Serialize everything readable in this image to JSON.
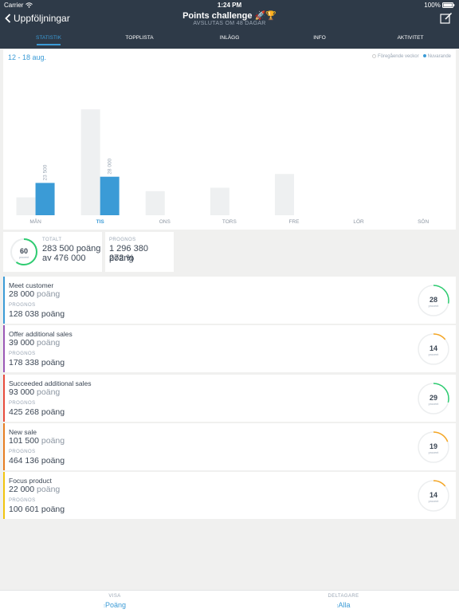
{
  "status_bar": {
    "carrier": "Carrier",
    "time": "1:24 PM",
    "battery": "100%"
  },
  "header": {
    "back_label": "Uppföljningar",
    "title": "Points challenge 🚀🏆",
    "subtitle": "AVSLUTAS OM 48 DAGAR",
    "edit_icon": "edit-icon"
  },
  "tabs": [
    "STATISTIK",
    "TOPPLISTA",
    "INLÄGG",
    "INFO",
    "AKTIVITET"
  ],
  "chart": {
    "date_range": "12 - 18 aug.",
    "legend_previous": "Föregående veckor",
    "legend_current": "Nuvarande"
  },
  "chart_data": {
    "type": "bar",
    "categories": [
      "MÅN",
      "TIS",
      "ONS",
      "TORS",
      "FRE",
      "LÖR",
      "SÖN"
    ],
    "highlight_category": "TIS",
    "series": [
      {
        "name": "Föregående veckor",
        "values": [
          13000,
          77000,
          17500,
          20000,
          30000,
          0,
          0
        ],
        "color": "#eef0f1"
      },
      {
        "name": "Nuvarande",
        "values": [
          23500,
          28000,
          0,
          0,
          0,
          0,
          0
        ],
        "color": "#3b9bd6"
      }
    ],
    "data_labels": [
      "23 500",
      "28 000"
    ],
    "ylim": [
      0,
      80000
    ]
  },
  "summary": {
    "percent": "60",
    "percent_label": "procent",
    "percent_value": 0.6,
    "total_label": "TOTALT",
    "total_value": "283 500 poäng",
    "total_of": "av 476 000",
    "prognos_label": "PROGNOS",
    "prognos_value": "1 296 380 poäng",
    "prognos_percent": "272 %"
  },
  "metrics": [
    {
      "name": "Meet customer",
      "value": "28 000",
      "unit": "poäng",
      "prognos_label": "PROGNOS",
      "prognos": "128 038",
      "percent": "28",
      "percent_label": "procent",
      "fraction": 0.28,
      "color": "#3b9bd6",
      "ring_color": "#2ecc71"
    },
    {
      "name": "Offer additional sales",
      "value": "39 000",
      "unit": "poäng",
      "prognos_label": "PROGNOS",
      "prognos": "178 338",
      "percent": "14",
      "percent_label": "procent",
      "fraction": 0.14,
      "color": "#9b59b6",
      "ring_color": "#f5a623"
    },
    {
      "name": "Succeeded additional sales",
      "value": "93 000",
      "unit": "poäng",
      "prognos_label": "PROGNOS",
      "prognos": "425 268",
      "percent": "29",
      "percent_label": "procent",
      "fraction": 0.29,
      "color": "#e74c3c",
      "ring_color": "#2ecc71"
    },
    {
      "name": "New sale",
      "value": "101 500",
      "unit": "poäng",
      "prognos_label": "PROGNOS",
      "prognos": "464 136",
      "percent": "19",
      "percent_label": "procent",
      "fraction": 0.19,
      "color": "#e67e22",
      "ring_color": "#f5a623"
    },
    {
      "name": "Focus product",
      "value": "22 000",
      "unit": "poäng",
      "prognos_label": "PROGNOS",
      "prognos": "100 601",
      "percent": "14",
      "percent_label": "procent",
      "fraction": 0.14,
      "color": "#f1c40f",
      "ring_color": "#f5a623"
    }
  ],
  "bottom": {
    "show_label": "VISA",
    "show_value": "Poäng",
    "participants_label": "DELTAGARE",
    "participants_value": "Alla"
  }
}
